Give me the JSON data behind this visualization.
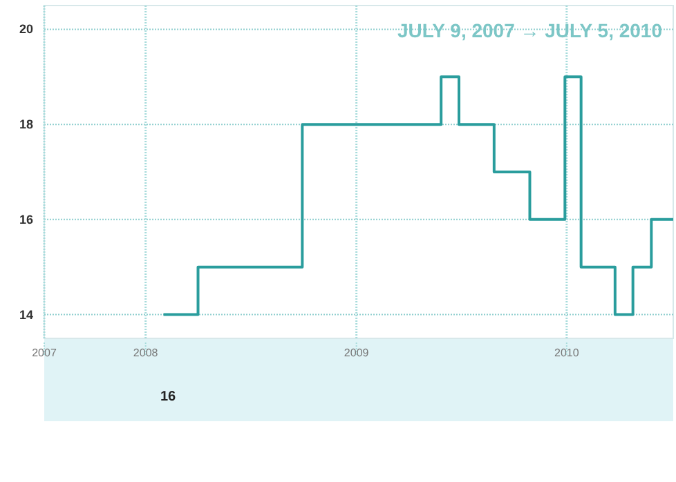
{
  "chart_data": {
    "type": "step",
    "title": "JULY 9, 2007 → JULY 5, 2010",
    "x": [
      "2008-02-01",
      "2008-04-01",
      "2008-09-29",
      "2009-05-28",
      "2009-06-28",
      "2009-08-28",
      "2009-10-29",
      "2009-12-29",
      "2010-01-26",
      "2010-03-26",
      "2010-04-26",
      "2010-05-28",
      "2010-07-05"
    ],
    "series": [
      {
        "color": "#2a9d9d",
        "values": [
          14,
          15,
          18,
          19,
          18,
          17,
          16,
          19,
          15,
          14,
          15,
          16,
          16
        ]
      }
    ],
    "xlim": [
      "2007-07-09",
      "2010-07-05"
    ],
    "xticks": [
      {
        "value": "2007-07-09",
        "label": "2007"
      },
      "2008",
      "2009",
      "2010"
    ],
    "ylim": [
      13.5,
      20.5
    ],
    "yticks": [
      14,
      16,
      18,
      20
    ],
    "grid": true,
    "annotations": [
      "16"
    ]
  }
}
